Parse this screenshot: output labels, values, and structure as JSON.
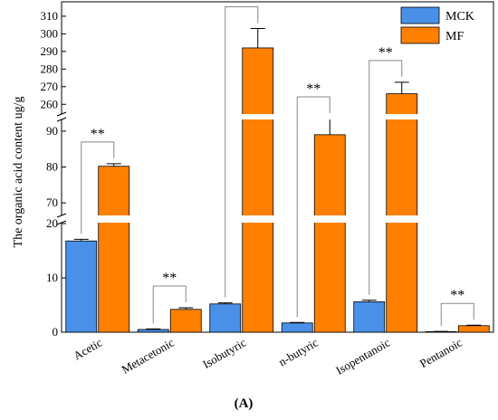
{
  "chart_data": {
    "type": "bar",
    "panel_label": "(A)",
    "ylabel": "The organic acid content ug/g",
    "categories": [
      "Acetic",
      "Metacetonic",
      "Isobutyric",
      "n-butyric",
      "Isopentanoic",
      "Pentanoic"
    ],
    "series": [
      {
        "name": "MCK",
        "color": "#4A90E8",
        "values": [
          16.8,
          0.5,
          5.2,
          1.7,
          5.6,
          0.1
        ],
        "errors": [
          0.3,
          0.1,
          0.2,
          0.1,
          0.3,
          0.05
        ]
      },
      {
        "name": "MF",
        "color": "#FF8000",
        "values": [
          80.2,
          4.2,
          292,
          89,
          266,
          1.2
        ],
        "errors": [
          0.7,
          0.3,
          11,
          4.5,
          6.5,
          0.1
        ]
      }
    ],
    "significance": [
      "**",
      "**",
      "**",
      "**",
      "**",
      "**"
    ],
    "axis_segments": [
      {
        "range": [
          0,
          20
        ],
        "ticks": [
          0,
          10,
          20
        ]
      },
      {
        "range": [
          67,
          93
        ],
        "ticks": [
          70,
          80,
          90
        ]
      },
      {
        "range": [
          255,
          312
        ],
        "ticks": [
          260,
          270,
          280,
          290,
          300,
          310
        ]
      }
    ],
    "legend_position": "top-right",
    "grid": false
  }
}
